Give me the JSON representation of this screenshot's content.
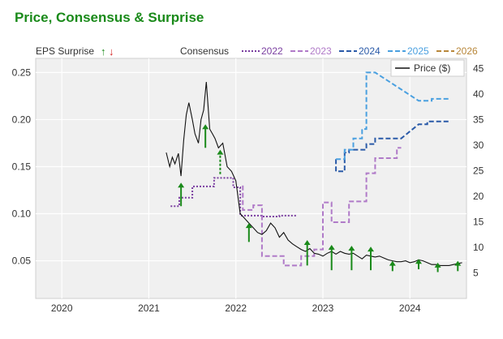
{
  "title": "Price, Consensus & Surprise",
  "chart_data": {
    "type": "line",
    "title": "Price, Consensus & Surprise",
    "left_axis": {
      "label": "EPS Surprise",
      "ticks": [
        "0.25",
        "0.20",
        "0.15",
        "0.10",
        "0.05"
      ],
      "tick_values": [
        0.25,
        0.2,
        0.15,
        0.1,
        0.05
      ],
      "range": [
        0.01,
        0.265
      ]
    },
    "right_axis": {
      "ticks": [
        "45",
        "40",
        "35",
        "30",
        "25",
        "20",
        "15",
        "10",
        "5"
      ],
      "tick_values": [
        45,
        40,
        35,
        30,
        25,
        20,
        15,
        10,
        5
      ],
      "range": [
        0,
        47
      ]
    },
    "x_axis": {
      "ticks": [
        "2020",
        "2021",
        "2022",
        "2023",
        "2024"
      ],
      "tick_values": [
        2020,
        2021,
        2022,
        2023,
        2024
      ],
      "range": [
        2019.7,
        2024.65
      ]
    },
    "grid": true,
    "legend": {
      "surprise_label": "EPS Surprise",
      "up_symbol": "↑",
      "down_symbol": "↓",
      "consensus_label": "Consensus",
      "price_label": "Price ($)"
    },
    "colors": {
      "title": "#1a8a1a",
      "up": "#1a8a1a",
      "down": "#d42020",
      "price": "#111111",
      "plot_bg": "#f0f0f0"
    },
    "consensus_series": [
      {
        "name": "2022",
        "color": "#7a3ea0",
        "dash": "2,2",
        "points": [
          [
            2021.25,
            0.108
          ],
          [
            2021.35,
            0.108
          ],
          [
            2021.35,
            0.117
          ],
          [
            2021.5,
            0.117
          ],
          [
            2021.5,
            0.129
          ],
          [
            2021.75,
            0.129
          ],
          [
            2021.75,
            0.138
          ],
          [
            2021.97,
            0.138
          ],
          [
            2021.97,
            0.128
          ],
          [
            2022.05,
            0.128
          ],
          [
            2022.05,
            0.098
          ],
          [
            2022.12,
            0.098
          ],
          [
            2022.12,
            0.098
          ],
          [
            2022.2,
            0.098
          ],
          [
            2022.2,
            0.098
          ],
          [
            2022.3,
            0.098
          ],
          [
            2022.3,
            0.097
          ],
          [
            2022.42,
            0.097
          ],
          [
            2022.42,
            0.097
          ],
          [
            2022.5,
            0.097
          ],
          [
            2022.5,
            0.098
          ],
          [
            2022.6,
            0.098
          ],
          [
            2022.6,
            0.098
          ],
          [
            2022.7,
            0.098
          ]
        ]
      },
      {
        "name": "2023",
        "color": "#b07ac8",
        "dash": "6,3",
        "points": [
          [
            2022.08,
            0.13
          ],
          [
            2022.08,
            0.104
          ],
          [
            2022.2,
            0.104
          ],
          [
            2022.2,
            0.109
          ],
          [
            2022.3,
            0.109
          ],
          [
            2022.3,
            0.055
          ],
          [
            2022.55,
            0.055
          ],
          [
            2022.55,
            0.045
          ],
          [
            2022.75,
            0.045
          ],
          [
            2022.75,
            0.055
          ],
          [
            2022.9,
            0.055
          ],
          [
            2022.9,
            0.062
          ],
          [
            2023.0,
            0.062
          ],
          [
            2023.0,
            0.112
          ],
          [
            2023.1,
            0.112
          ],
          [
            2023.1,
            0.091
          ],
          [
            2023.3,
            0.091
          ],
          [
            2023.3,
            0.113
          ],
          [
            2023.5,
            0.113
          ],
          [
            2023.5,
            0.143
          ],
          [
            2023.6,
            0.143
          ],
          [
            2023.6,
            0.159
          ],
          [
            2023.85,
            0.159
          ],
          [
            2023.85,
            0.17
          ],
          [
            2023.9,
            0.17
          ]
        ]
      },
      {
        "name": "2024",
        "color": "#2a5aa8",
        "dash": "6,3",
        "points": [
          [
            2023.15,
            0.158
          ],
          [
            2023.15,
            0.145
          ],
          [
            2023.25,
            0.145
          ],
          [
            2023.25,
            0.165
          ],
          [
            2023.3,
            0.165
          ],
          [
            2023.3,
            0.168
          ],
          [
            2023.4,
            0.168
          ],
          [
            2023.4,
            0.168
          ],
          [
            2023.5,
            0.168
          ],
          [
            2023.5,
            0.174
          ],
          [
            2023.6,
            0.174
          ],
          [
            2023.6,
            0.18
          ],
          [
            2023.8,
            0.18
          ],
          [
            2023.8,
            0.18
          ],
          [
            2023.9,
            0.18
          ],
          [
            2024.1,
            0.195
          ],
          [
            2024.2,
            0.195
          ],
          [
            2024.2,
            0.198
          ],
          [
            2024.35,
            0.198
          ],
          [
            2024.35,
            0.198
          ],
          [
            2024.45,
            0.198
          ]
        ]
      },
      {
        "name": "2025",
        "color": "#4aa0e0",
        "dash": "6,3",
        "points": [
          [
            2023.15,
            0.158
          ],
          [
            2023.25,
            0.158
          ],
          [
            2023.25,
            0.168
          ],
          [
            2023.35,
            0.168
          ],
          [
            2023.35,
            0.18
          ],
          [
            2023.45,
            0.18
          ],
          [
            2023.45,
            0.19
          ],
          [
            2023.5,
            0.19
          ],
          [
            2023.5,
            0.25
          ],
          [
            2023.6,
            0.25
          ],
          [
            2024.1,
            0.22
          ],
          [
            2024.25,
            0.22
          ],
          [
            2024.25,
            0.222
          ],
          [
            2024.45,
            0.222
          ]
        ]
      },
      {
        "name": "2026",
        "color": "#b8873a",
        "dash": "6,3",
        "points": []
      }
    ],
    "price_series": {
      "name": "Price ($)",
      "points": [
        [
          2021.2,
          0.165
        ],
        [
          2021.24,
          0.15
        ],
        [
          2021.27,
          0.16
        ],
        [
          2021.3,
          0.153
        ],
        [
          2021.34,
          0.164
        ],
        [
          2021.37,
          0.14
        ],
        [
          2021.4,
          0.178
        ],
        [
          2021.43,
          0.205
        ],
        [
          2021.46,
          0.218
        ],
        [
          2021.5,
          0.2
        ],
        [
          2021.53,
          0.185
        ],
        [
          2021.57,
          0.175
        ],
        [
          2021.6,
          0.2
        ],
        [
          2021.63,
          0.21
        ],
        [
          2021.66,
          0.24
        ],
        [
          2021.7,
          0.19
        ],
        [
          2021.73,
          0.185
        ],
        [
          2021.76,
          0.18
        ],
        [
          2021.8,
          0.17
        ],
        [
          2021.85,
          0.175
        ],
        [
          2021.9,
          0.15
        ],
        [
          2021.95,
          0.145
        ],
        [
          2022.0,
          0.135
        ],
        [
          2022.05,
          0.1
        ],
        [
          2022.1,
          0.095
        ],
        [
          2022.15,
          0.09
        ],
        [
          2022.2,
          0.085
        ],
        [
          2022.25,
          0.08
        ],
        [
          2022.3,
          0.078
        ],
        [
          2022.35,
          0.082
        ],
        [
          2022.4,
          0.09
        ],
        [
          2022.45,
          0.085
        ],
        [
          2022.5,
          0.075
        ],
        [
          2022.55,
          0.08
        ],
        [
          2022.6,
          0.072
        ],
        [
          2022.65,
          0.068
        ],
        [
          2022.7,
          0.065
        ],
        [
          2022.75,
          0.062
        ],
        [
          2022.8,
          0.06
        ],
        [
          2022.85,
          0.063
        ],
        [
          2022.9,
          0.058
        ],
        [
          2022.95,
          0.057
        ],
        [
          2023.0,
          0.055
        ],
        [
          2023.05,
          0.058
        ],
        [
          2023.1,
          0.06
        ],
        [
          2023.15,
          0.057
        ],
        [
          2023.2,
          0.06
        ],
        [
          2023.25,
          0.058
        ],
        [
          2023.3,
          0.057
        ],
        [
          2023.35,
          0.058
        ],
        [
          2023.4,
          0.055
        ],
        [
          2023.45,
          0.052
        ],
        [
          2023.5,
          0.056
        ],
        [
          2023.55,
          0.055
        ],
        [
          2023.6,
          0.054
        ],
        [
          2023.65,
          0.055
        ],
        [
          2023.7,
          0.053
        ],
        [
          2023.75,
          0.051
        ],
        [
          2023.8,
          0.05
        ],
        [
          2023.85,
          0.049
        ],
        [
          2023.9,
          0.049
        ],
        [
          2023.95,
          0.05
        ],
        [
          2024.0,
          0.048
        ],
        [
          2024.05,
          0.049
        ],
        [
          2024.1,
          0.051
        ],
        [
          2024.15,
          0.05
        ],
        [
          2024.2,
          0.048
        ],
        [
          2024.25,
          0.046
        ],
        [
          2024.3,
          0.046
        ],
        [
          2024.35,
          0.045
        ],
        [
          2024.4,
          0.045
        ],
        [
          2024.45,
          0.045
        ],
        [
          2024.5,
          0.046
        ],
        [
          2024.55,
          0.047
        ],
        [
          2024.6,
          0.048
        ]
      ]
    },
    "surprise_arrows": [
      {
        "x": 2021.37,
        "y0": 0.108,
        "y1": 0.133,
        "dir": "up"
      },
      {
        "x": 2021.65,
        "y0": 0.17,
        "y1": 0.195,
        "dir": "up"
      },
      {
        "x": 2021.82,
        "y0": 0.142,
        "y1": 0.168,
        "dir": "up",
        "dashed": true
      },
      {
        "x": 2022.15,
        "y0": 0.07,
        "y1": 0.09,
        "dir": "up"
      },
      {
        "x": 2022.82,
        "y0": 0.045,
        "y1": 0.072,
        "dir": "up"
      },
      {
        "x": 2023.1,
        "y0": 0.04,
        "y1": 0.067,
        "dir": "up"
      },
      {
        "x": 2023.33,
        "y0": 0.04,
        "y1": 0.066,
        "dir": "up"
      },
      {
        "x": 2023.55,
        "y0": 0.04,
        "y1": 0.065,
        "dir": "up"
      },
      {
        "x": 2023.8,
        "y0": 0.039,
        "y1": 0.05,
        "dir": "up"
      },
      {
        "x": 2024.1,
        "y0": 0.041,
        "y1": 0.052,
        "dir": "up"
      },
      {
        "x": 2024.32,
        "y0": 0.038,
        "y1": 0.048,
        "dir": "up"
      },
      {
        "x": 2024.55,
        "y0": 0.039,
        "y1": 0.05,
        "dir": "up"
      }
    ]
  }
}
